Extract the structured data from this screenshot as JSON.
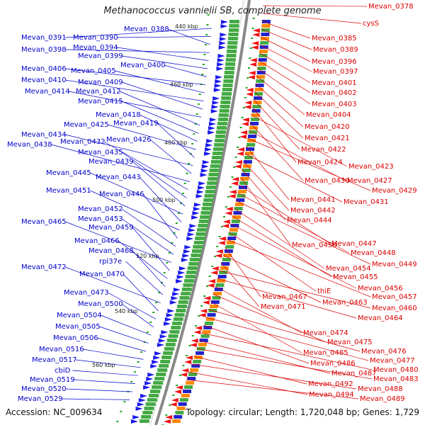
{
  "title": "Methanococcus vannielii SB, complete genome",
  "footer": {
    "accession": "Accession: NC_009634",
    "topology": "Topology: circular; Length: 1,720,048 bp; Genes: 1,729"
  },
  "colors": {
    "left_labels": "#0000cc",
    "right_labels": "#dd0000",
    "backbone": "#888888",
    "tick": "#22aa22"
  },
  "scale_labels": [
    "440 kbp",
    "460 kbp",
    "480 kbp",
    "500 kbp",
    "520 kbp",
    "540 kbp",
    "560 kbp"
  ],
  "left_labels": [
    "Mevan_0391",
    "Mevan_0390",
    "Mevan_0388",
    "Mevan_0398",
    "Mevan_0394",
    "Mevan_0399",
    "Mevan_0400",
    "Mevan_0406",
    "Mevan_0405",
    "Mevan_0410",
    "Mevan_0409",
    "Mevan_0414",
    "Mevan_0412",
    "Mevan_0415",
    "Mevan_0418",
    "Mevan_0425",
    "Mevan_0419",
    "Mevan_0434",
    "Mevan_0426",
    "Mevan_0438",
    "Mevan_0432",
    "Mevan_0435",
    "Mevan_0439",
    "Mevan_0445",
    "Mevan_0443",
    "Mevan_0451",
    "Mevan_0446",
    "Mevan_0452",
    "Mevan_0453",
    "Mevan_0465",
    "Mevan_0459",
    "Mevan_0466",
    "Mevan_0468",
    "rpl37e",
    "Mevan_0472",
    "Mevan_0470",
    "Mevan_0473",
    "Mevan_0500",
    "Mevan_0504",
    "Mevan_0505",
    "Mevan_0506",
    "Mevan_0516",
    "Mevan_0517",
    "cbiD",
    "Mevan_0519",
    "Mevan_0520",
    "Mevan_0529"
  ],
  "right_labels": [
    "Mevan_0378",
    "cysS",
    "Mevan_0385",
    "Mevan_0389",
    "Mevan_0396",
    "Mevan_0397",
    "Mevan_0401",
    "Mevan_0402",
    "Mevan_0403",
    "Mevan_0404",
    "Mevan_0420",
    "Mevan_0421",
    "Mevan_0422",
    "Mevan_0424",
    "Mevan_0423",
    "Mevan_0430",
    "Mevan_0427",
    "Mevan_0429",
    "Mevan_0441",
    "Mevan_0431",
    "Mevan_0442",
    "Mevan_0444",
    "Mevan_0450",
    "Mevan_0447",
    "Mevan_0448",
    "Mevan_0449",
    "Mevan_0454",
    "Mevan_0455",
    "Mevan_0456",
    "thiE",
    "Mevan_0457",
    "Mevan_0467",
    "Mevan_0463",
    "Mevan_0471",
    "Mevan_0460",
    "Mevan_0464",
    "Mevan_0474",
    "Mevan_0475",
    "Mevan_0485",
    "Mevan_0476",
    "Mevan_0477",
    "Mevan_0486",
    "Mevan_0480",
    "Mevan_0487",
    "Mevan_0483",
    "Mevan_0492",
    "Mevan_0488",
    "Mevan_0494",
    "Mevan_0489"
  ]
}
